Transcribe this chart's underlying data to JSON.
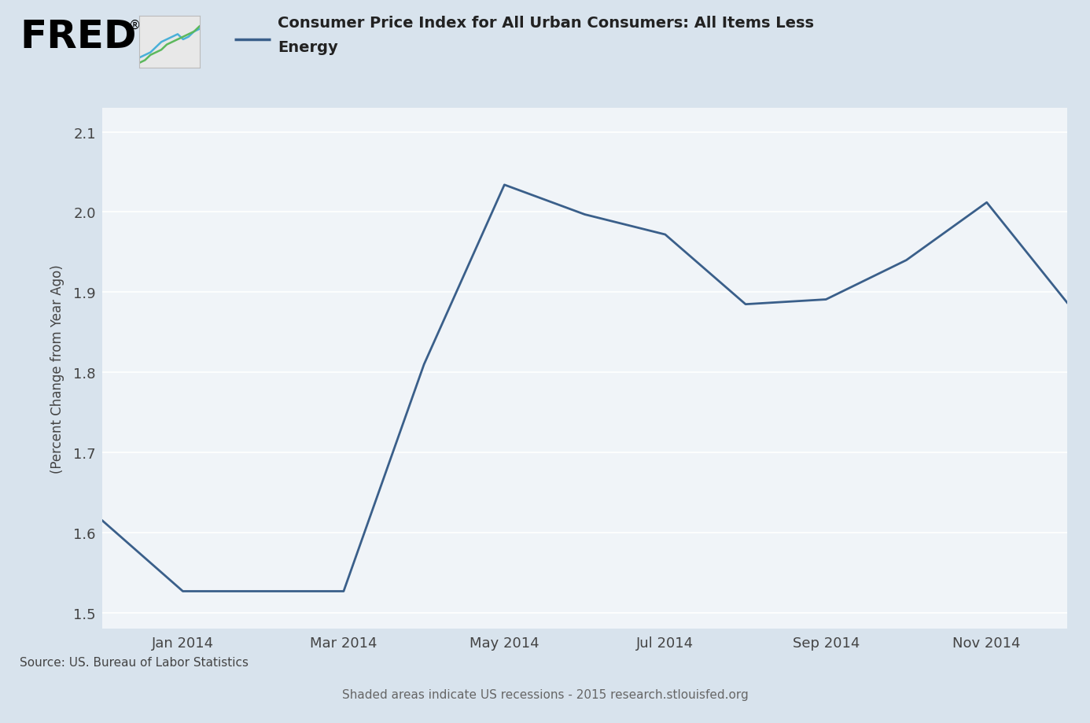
{
  "title_line1": "Consumer Price Index for All Urban Consumers: All Items Less",
  "title_line2": "Energy",
  "ylabel": "(Percent Change from Year Ago)",
  "source_text": "Source: US. Bureau of Labor Statistics",
  "shaded_text": "Shaded areas indicate US recessions - 2015 research.stlouisfed.org",
  "line_color": "#3a5f8a",
  "background_color": "#d8e3ed",
  "plot_bg_color": "#f0f4f8",
  "grid_color": "#ffffff",
  "x_tick_labels": [
    "Jan 2014",
    "Mar 2014",
    "May 2014",
    "Jul 2014",
    "Sep 2014",
    "Nov 2014"
  ],
  "x_tick_positions": [
    1,
    3,
    5,
    7,
    9,
    11
  ],
  "values": [
    1.615,
    1.527,
    1.527,
    1.527,
    1.81,
    2.034,
    1.997,
    1.972,
    1.885,
    1.891,
    1.94,
    2.012,
    1.887
  ],
  "ylim": [
    1.48,
    2.13
  ],
  "yticks": [
    1.5,
    1.6,
    1.7,
    1.8,
    1.9,
    2.0,
    2.1
  ],
  "tick_fontsize": 13,
  "axis_label_fontsize": 12,
  "legend_fontsize": 13,
  "line_width": 2.0,
  "fred_fontsize": 36,
  "title_fontsize": 14
}
